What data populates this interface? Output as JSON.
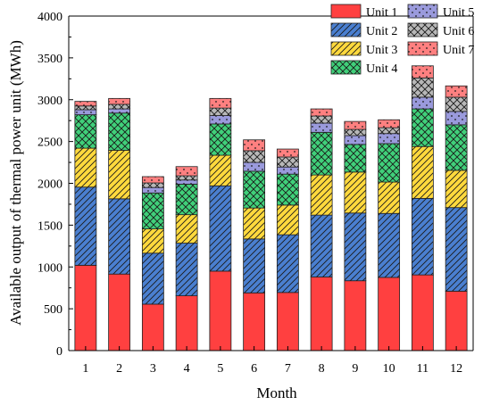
{
  "chart_data": {
    "type": "bar",
    "stacked": true,
    "title": "",
    "xlabel": "Month",
    "ylabel": "Available output of thermal power unit (MWh)",
    "ylim": [
      0,
      4000
    ],
    "yticks": [
      0,
      500,
      1000,
      1500,
      2000,
      2500,
      3000,
      3500,
      4000
    ],
    "categories": [
      "1",
      "2",
      "3",
      "4",
      "5",
      "6",
      "7",
      "8",
      "9",
      "10",
      "11",
      "12"
    ],
    "grid": false,
    "legend_position": "top-right",
    "series": [
      {
        "name": "Unit 1",
        "color": "#FF4040",
        "pattern": "none",
        "values": [
          1020,
          915,
          555,
          655,
          950,
          690,
          695,
          880,
          835,
          875,
          905,
          710
        ]
      },
      {
        "name": "Unit 2",
        "color": "#4A7FD0",
        "pattern": "diagonal",
        "values": [
          935,
          900,
          610,
          630,
          1020,
          645,
          690,
          740,
          810,
          765,
          915,
          1000
        ]
      },
      {
        "name": "Unit 3",
        "color": "#FFD93D",
        "pattern": "diagonal",
        "values": [
          465,
          580,
          290,
          340,
          365,
          370,
          355,
          480,
          490,
          375,
          620,
          445
        ]
      },
      {
        "name": "Unit 4",
        "color": "#40D07A",
        "pattern": "crosshatch",
        "values": [
          400,
          445,
          430,
          365,
          375,
          440,
          370,
          510,
          330,
          460,
          450,
          545
        ]
      },
      {
        "name": "Unit 5",
        "color": "#9A9ADC",
        "pattern": "dots",
        "values": [
          60,
          50,
          65,
          50,
          100,
          105,
          85,
          110,
          105,
          120,
          140,
          160
        ]
      },
      {
        "name": "Unit 6",
        "color": "#B8B8B8",
        "pattern": "crosshatch",
        "values": [
          45,
          55,
          55,
          50,
          90,
          140,
          120,
          85,
          75,
          70,
          230,
          170
        ]
      },
      {
        "name": "Unit 7",
        "color": "#FF8080",
        "pattern": "dots",
        "values": [
          55,
          70,
          75,
          110,
          115,
          130,
          95,
          85,
          95,
          95,
          145,
          135
        ]
      }
    ]
  }
}
